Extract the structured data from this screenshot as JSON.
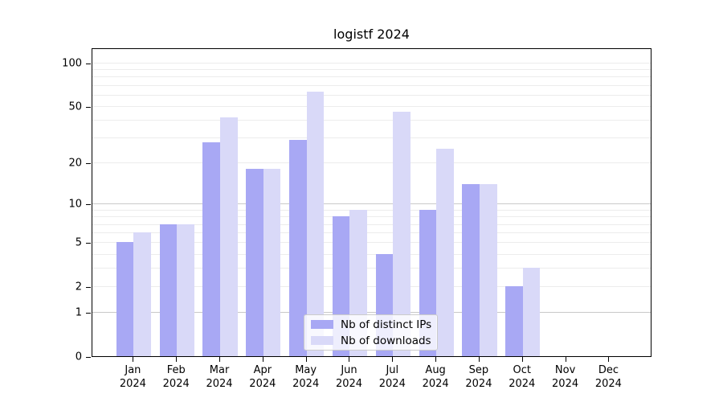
{
  "title": "logistf 2024",
  "colors": {
    "distinct_ips": "#a8a8f4",
    "downloads": "#d9d9f8",
    "grid_minor": "#ececec",
    "grid_major": "#c9c9c9",
    "axis": "#000000"
  },
  "legend": {
    "items": [
      {
        "label": "Nb of distinct IPs",
        "color": "#a8a8f4"
      },
      {
        "label": "Nb of downloads",
        "color": "#d9d9f8"
      }
    ]
  },
  "chart_data": {
    "type": "bar",
    "title": "logistf 2024",
    "categories": [
      "Jan 2024",
      "Feb 2024",
      "Mar 2024",
      "Apr 2024",
      "May 2024",
      "Jun 2024",
      "Jul 2024",
      "Aug 2024",
      "Sep 2024",
      "Oct 2024",
      "Nov 2024",
      "Dec 2024"
    ],
    "series": [
      {
        "name": "Nb of distinct IPs",
        "color": "#a8a8f4",
        "values": [
          5,
          7,
          28,
          18,
          29,
          8,
          4,
          9,
          14,
          2,
          0,
          0
        ]
      },
      {
        "name": "Nb of downloads",
        "color": "#d9d9f8",
        "values": [
          6,
          7,
          42,
          18,
          63,
          9,
          46,
          25,
          14,
          3,
          0,
          0
        ]
      }
    ],
    "xlabel": "",
    "ylabel": "",
    "yscale": "log10(value+1)",
    "yticks_labeled": [
      0,
      1,
      2,
      5,
      10,
      20,
      50,
      100
    ],
    "gridlines_minor": [
      2,
      3,
      4,
      5,
      6,
      7,
      8,
      9,
      20,
      30,
      40,
      50,
      60,
      70,
      80,
      90,
      100
    ],
    "gridlines_major": [
      1,
      10
    ],
    "ylim": [
      0,
      127
    ],
    "grid": "horizontal",
    "legend_position": "bottom-center"
  }
}
